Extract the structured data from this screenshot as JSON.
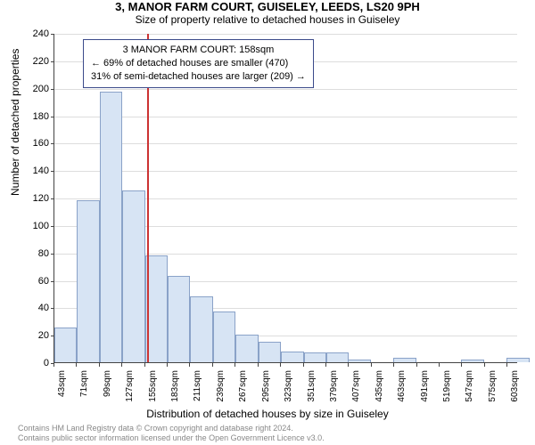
{
  "title": "3, MANOR FARM COURT, GUISELEY, LEEDS, LS20 9PH",
  "subtitle": "Size of property relative to detached houses in Guiseley",
  "ylabel": "Number of detached properties",
  "xlabel": "Distribution of detached houses by size in Guiseley",
  "chart": {
    "type": "histogram",
    "ylim": [
      0,
      240
    ],
    "ytick_step": 20,
    "xlim": [
      43,
      616
    ],
    "xtick_start": 43,
    "xtick_step": 28,
    "xtick_count": 21,
    "xtick_unit": "sqm",
    "bar_fill": "#d7e4f4",
    "bar_stroke": "#8aa2c8",
    "grid_color": "#dddddd",
    "axis_color": "#444444",
    "bars": [
      {
        "x": 43,
        "value": 25
      },
      {
        "x": 71,
        "value": 118
      },
      {
        "x": 99,
        "value": 197
      },
      {
        "x": 127,
        "value": 125
      },
      {
        "x": 155,
        "value": 78
      },
      {
        "x": 183,
        "value": 63
      },
      {
        "x": 211,
        "value": 48
      },
      {
        "x": 239,
        "value": 37
      },
      {
        "x": 267,
        "value": 20
      },
      {
        "x": 295,
        "value": 15
      },
      {
        "x": 323,
        "value": 8
      },
      {
        "x": 351,
        "value": 7
      },
      {
        "x": 379,
        "value": 7
      },
      {
        "x": 406,
        "value": 2
      },
      {
        "x": 434,
        "value": 0
      },
      {
        "x": 462,
        "value": 3
      },
      {
        "x": 490,
        "value": 0
      },
      {
        "x": 518,
        "value": 0
      },
      {
        "x": 546,
        "value": 2
      },
      {
        "x": 574,
        "value": 0
      },
      {
        "x": 602,
        "value": 3
      }
    ],
    "marker_line": {
      "x": 158,
      "color": "#cc3333"
    }
  },
  "annotation": {
    "line1": "3 MANOR FARM COURT: 158sqm",
    "line2": "← 69% of detached houses are smaller (470)",
    "line3": "31% of semi-detached houses are larger (209) →",
    "border_color": "#3b4a8a"
  },
  "footer": {
    "line1": "Contains HM Land Registry data © Crown copyright and database right 2024.",
    "line2": "Contains public sector information licensed under the Open Government Licence v3.0."
  }
}
